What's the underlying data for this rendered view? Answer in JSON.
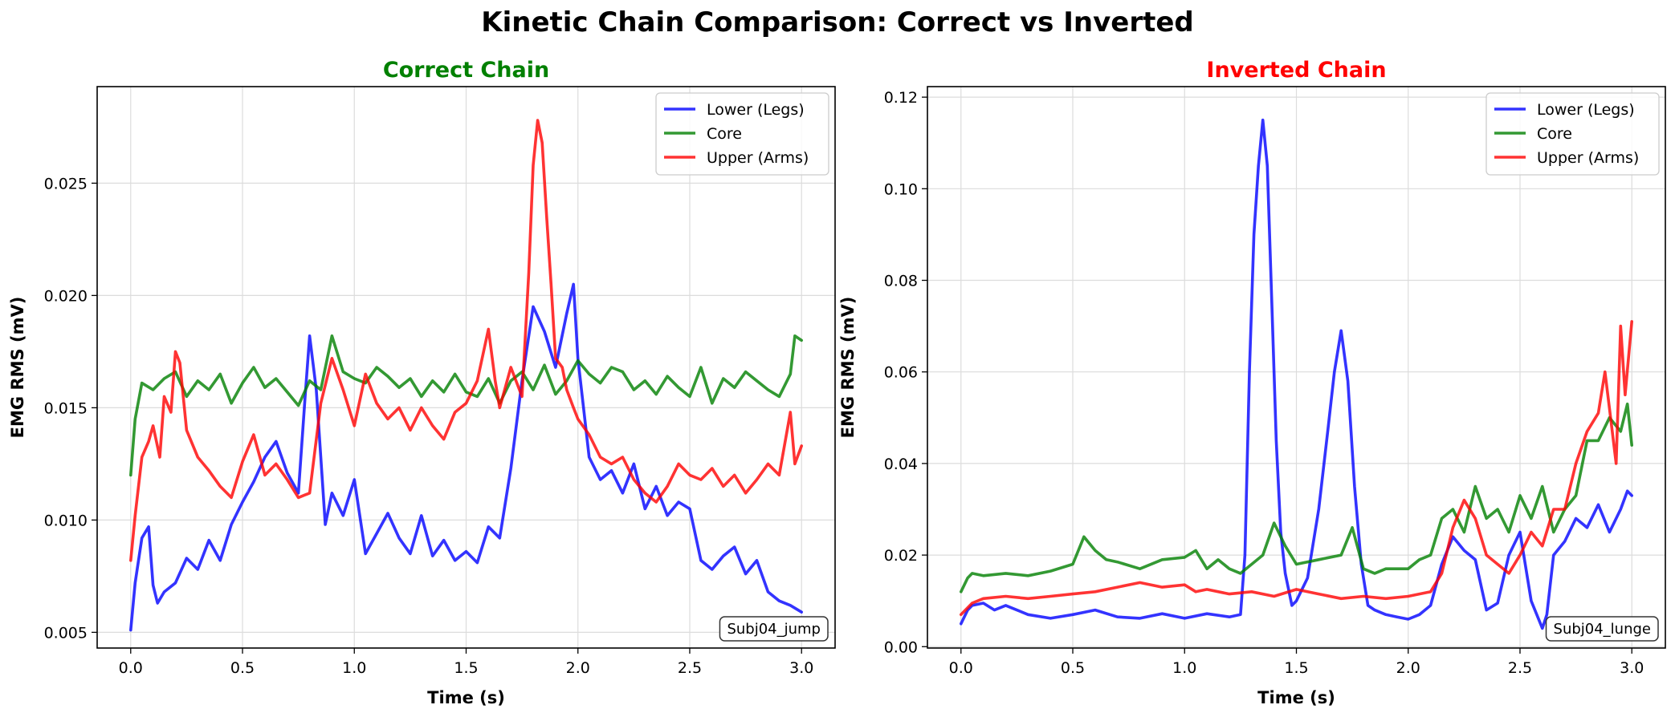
{
  "figure": {
    "title": "Kinetic Chain Comparison: Correct vs Inverted"
  },
  "chart_data": [
    {
      "type": "line",
      "title": "Correct Chain",
      "title_color": "#008000",
      "xlabel": "Time (s)",
      "ylabel": "EMG RMS (mV)",
      "xlim": [
        -0.15,
        3.15
      ],
      "ylim": [
        0.0043,
        0.0293
      ],
      "xticks": [
        0.0,
        0.5,
        1.0,
        1.5,
        2.0,
        2.5,
        3.0
      ],
      "xtick_labels": [
        "0.0",
        "0.5",
        "1.0",
        "1.5",
        "2.0",
        "2.5",
        "3.0"
      ],
      "yticks": [
        0.005,
        0.01,
        0.015,
        0.02,
        0.025
      ],
      "ytick_labels": [
        "0.005",
        "0.010",
        "0.015",
        "0.020",
        "0.025"
      ],
      "grid": true,
      "legend": "top-right",
      "annotation": "Subj04_jump",
      "series": [
        {
          "name": "Lower (Legs)",
          "color": "#0000ff",
          "x": [
            0.0,
            0.02,
            0.05,
            0.08,
            0.1,
            0.12,
            0.15,
            0.2,
            0.25,
            0.3,
            0.35,
            0.4,
            0.45,
            0.5,
            0.55,
            0.6,
            0.65,
            0.7,
            0.75,
            0.78,
            0.8,
            0.83,
            0.87,
            0.9,
            0.95,
            1.0,
            1.05,
            1.1,
            1.15,
            1.2,
            1.25,
            1.3,
            1.35,
            1.4,
            1.45,
            1.5,
            1.55,
            1.6,
            1.65,
            1.7,
            1.75,
            1.8,
            1.85,
            1.9,
            1.95,
            1.98,
            2.0,
            2.05,
            2.1,
            2.15,
            2.2,
            2.25,
            2.3,
            2.35,
            2.4,
            2.45,
            2.5,
            2.55,
            2.6,
            2.65,
            2.7,
            2.75,
            2.8,
            2.85,
            2.9,
            2.95,
            3.0
          ],
          "values": [
            0.0051,
            0.0072,
            0.0092,
            0.0097,
            0.0071,
            0.0063,
            0.0068,
            0.0072,
            0.0083,
            0.0078,
            0.0091,
            0.0082,
            0.0098,
            0.0108,
            0.0117,
            0.0128,
            0.0135,
            0.0121,
            0.0112,
            0.0155,
            0.0182,
            0.0158,
            0.0098,
            0.0112,
            0.0102,
            0.0118,
            0.0085,
            0.0094,
            0.0103,
            0.0092,
            0.0085,
            0.0102,
            0.0084,
            0.0091,
            0.0082,
            0.0086,
            0.0081,
            0.0097,
            0.0092,
            0.0123,
            0.0162,
            0.0195,
            0.0184,
            0.0168,
            0.0192,
            0.0205,
            0.0172,
            0.0128,
            0.0118,
            0.0122,
            0.0112,
            0.0125,
            0.0105,
            0.0115,
            0.0102,
            0.0108,
            0.0105,
            0.0082,
            0.0078,
            0.0084,
            0.0088,
            0.0076,
            0.0082,
            0.0068,
            0.0064,
            0.0062,
            0.0059
          ]
        },
        {
          "name": "Core",
          "color": "#008000",
          "x": [
            0.0,
            0.02,
            0.05,
            0.1,
            0.15,
            0.2,
            0.25,
            0.3,
            0.35,
            0.4,
            0.45,
            0.5,
            0.55,
            0.6,
            0.65,
            0.7,
            0.75,
            0.8,
            0.85,
            0.9,
            0.95,
            1.0,
            1.05,
            1.1,
            1.15,
            1.2,
            1.25,
            1.3,
            1.35,
            1.4,
            1.45,
            1.5,
            1.55,
            1.6,
            1.65,
            1.7,
            1.75,
            1.8,
            1.85,
            1.9,
            1.95,
            2.0,
            2.05,
            2.1,
            2.15,
            2.2,
            2.25,
            2.3,
            2.35,
            2.4,
            2.45,
            2.5,
            2.55,
            2.6,
            2.65,
            2.7,
            2.75,
            2.8,
            2.85,
            2.9,
            2.95,
            2.97,
            3.0
          ],
          "values": [
            0.012,
            0.0145,
            0.0161,
            0.0158,
            0.0163,
            0.0166,
            0.0155,
            0.0162,
            0.0158,
            0.0165,
            0.0152,
            0.0161,
            0.0168,
            0.0159,
            0.0163,
            0.0157,
            0.0151,
            0.0162,
            0.0158,
            0.0182,
            0.0166,
            0.0163,
            0.0161,
            0.0168,
            0.0164,
            0.0159,
            0.0163,
            0.0155,
            0.0162,
            0.0157,
            0.0165,
            0.0157,
            0.0155,
            0.0163,
            0.0152,
            0.0162,
            0.0166,
            0.0158,
            0.0169,
            0.0156,
            0.0162,
            0.0171,
            0.0165,
            0.0161,
            0.0168,
            0.0166,
            0.0158,
            0.0162,
            0.0156,
            0.0164,
            0.0159,
            0.0155,
            0.0168,
            0.0152,
            0.0163,
            0.0159,
            0.0166,
            0.0162,
            0.0158,
            0.0155,
            0.0165,
            0.0182,
            0.018
          ]
        },
        {
          "name": "Upper (Arms)",
          "color": "#ff0000",
          "x": [
            0.0,
            0.02,
            0.05,
            0.08,
            0.1,
            0.13,
            0.15,
            0.18,
            0.2,
            0.22,
            0.25,
            0.3,
            0.35,
            0.4,
            0.45,
            0.5,
            0.55,
            0.6,
            0.65,
            0.7,
            0.75,
            0.8,
            0.85,
            0.9,
            0.95,
            1.0,
            1.05,
            1.1,
            1.15,
            1.2,
            1.25,
            1.3,
            1.35,
            1.4,
            1.45,
            1.5,
            1.55,
            1.6,
            1.63,
            1.65,
            1.7,
            1.75,
            1.78,
            1.8,
            1.82,
            1.84,
            1.86,
            1.88,
            1.9,
            1.93,
            1.95,
            1.98,
            2.0,
            2.05,
            2.1,
            2.15,
            2.2,
            2.25,
            2.3,
            2.35,
            2.4,
            2.45,
            2.5,
            2.55,
            2.6,
            2.65,
            2.7,
            2.75,
            2.8,
            2.85,
            2.9,
            2.95,
            2.97,
            3.0
          ],
          "values": [
            0.0082,
            0.0102,
            0.0128,
            0.0135,
            0.0142,
            0.0128,
            0.0155,
            0.0148,
            0.0175,
            0.017,
            0.014,
            0.0128,
            0.0122,
            0.0115,
            0.011,
            0.0126,
            0.0138,
            0.012,
            0.0125,
            0.0118,
            0.011,
            0.0112,
            0.0152,
            0.0172,
            0.0158,
            0.0142,
            0.0165,
            0.0152,
            0.0145,
            0.015,
            0.014,
            0.015,
            0.0142,
            0.0136,
            0.0148,
            0.0152,
            0.0162,
            0.0185,
            0.0162,
            0.015,
            0.0168,
            0.0155,
            0.021,
            0.0258,
            0.0278,
            0.0268,
            0.0235,
            0.0205,
            0.0172,
            0.0168,
            0.0158,
            0.015,
            0.0145,
            0.0138,
            0.0128,
            0.0125,
            0.0128,
            0.0118,
            0.0112,
            0.0108,
            0.0115,
            0.0125,
            0.012,
            0.0118,
            0.0123,
            0.0115,
            0.012,
            0.0112,
            0.0118,
            0.0125,
            0.012,
            0.0148,
            0.0125,
            0.0133
          ]
        }
      ]
    },
    {
      "type": "line",
      "title": "Inverted Chain",
      "title_color": "#ff0000",
      "xlabel": "Time (s)",
      "ylabel": "EMG RMS (mV)",
      "xlim": [
        -0.15,
        3.15
      ],
      "ylim": [
        -0.0003,
        0.1223
      ],
      "xticks": [
        0.0,
        0.5,
        1.0,
        1.5,
        2.0,
        2.5,
        3.0
      ],
      "xtick_labels": [
        "0.0",
        "0.5",
        "1.0",
        "1.5",
        "2.0",
        "2.5",
        "3.0"
      ],
      "yticks": [
        0.0,
        0.02,
        0.04,
        0.06,
        0.08,
        0.1,
        0.12
      ],
      "ytick_labels": [
        "0.00",
        "0.02",
        "0.04",
        "0.06",
        "0.08",
        "0.10",
        "0.12"
      ],
      "grid": true,
      "legend": "top-right",
      "annotation": "Subj04_lunge",
      "series": [
        {
          "name": "Lower (Legs)",
          "color": "#0000ff",
          "x": [
            0.0,
            0.03,
            0.05,
            0.1,
            0.15,
            0.2,
            0.3,
            0.4,
            0.5,
            0.6,
            0.7,
            0.8,
            0.9,
            1.0,
            1.1,
            1.2,
            1.25,
            1.27,
            1.29,
            1.31,
            1.33,
            1.35,
            1.37,
            1.39,
            1.41,
            1.43,
            1.45,
            1.48,
            1.5,
            1.55,
            1.6,
            1.64,
            1.67,
            1.7,
            1.73,
            1.76,
            1.79,
            1.82,
            1.85,
            1.9,
            1.95,
            2.0,
            2.05,
            2.1,
            2.15,
            2.2,
            2.25,
            2.3,
            2.35,
            2.4,
            2.45,
            2.5,
            2.55,
            2.6,
            2.62,
            2.65,
            2.7,
            2.75,
            2.8,
            2.85,
            2.9,
            2.95,
            2.98,
            3.0
          ],
          "values": [
            0.005,
            0.008,
            0.009,
            0.0095,
            0.008,
            0.009,
            0.007,
            0.0062,
            0.007,
            0.008,
            0.0065,
            0.0062,
            0.0072,
            0.0062,
            0.0072,
            0.0065,
            0.007,
            0.02,
            0.06,
            0.09,
            0.105,
            0.115,
            0.105,
            0.075,
            0.045,
            0.025,
            0.016,
            0.009,
            0.01,
            0.015,
            0.03,
            0.047,
            0.06,
            0.069,
            0.058,
            0.035,
            0.018,
            0.009,
            0.008,
            0.007,
            0.0065,
            0.006,
            0.007,
            0.009,
            0.018,
            0.024,
            0.021,
            0.019,
            0.008,
            0.0095,
            0.02,
            0.025,
            0.01,
            0.004,
            0.007,
            0.02,
            0.023,
            0.028,
            0.026,
            0.031,
            0.025,
            0.03,
            0.034,
            0.033
          ]
        },
        {
          "name": "Core",
          "color": "#008000",
          "x": [
            0.0,
            0.03,
            0.05,
            0.1,
            0.2,
            0.3,
            0.4,
            0.5,
            0.55,
            0.6,
            0.65,
            0.7,
            0.8,
            0.9,
            1.0,
            1.05,
            1.1,
            1.15,
            1.2,
            1.25,
            1.3,
            1.35,
            1.4,
            1.45,
            1.5,
            1.6,
            1.7,
            1.75,
            1.8,
            1.85,
            1.9,
            2.0,
            2.05,
            2.1,
            2.15,
            2.2,
            2.25,
            2.3,
            2.35,
            2.4,
            2.45,
            2.5,
            2.55,
            2.6,
            2.65,
            2.7,
            2.75,
            2.8,
            2.85,
            2.9,
            2.95,
            2.98,
            3.0
          ],
          "values": [
            0.012,
            0.015,
            0.016,
            0.0155,
            0.016,
            0.0155,
            0.0165,
            0.018,
            0.024,
            0.021,
            0.019,
            0.0185,
            0.017,
            0.019,
            0.0195,
            0.021,
            0.017,
            0.019,
            0.017,
            0.016,
            0.018,
            0.02,
            0.027,
            0.022,
            0.018,
            0.019,
            0.02,
            0.026,
            0.017,
            0.016,
            0.017,
            0.017,
            0.019,
            0.02,
            0.028,
            0.03,
            0.025,
            0.035,
            0.028,
            0.03,
            0.025,
            0.033,
            0.028,
            0.035,
            0.025,
            0.03,
            0.033,
            0.045,
            0.045,
            0.05,
            0.047,
            0.053,
            0.044
          ]
        },
        {
          "name": "Upper (Arms)",
          "color": "#ff0000",
          "x": [
            0.0,
            0.05,
            0.1,
            0.2,
            0.3,
            0.4,
            0.5,
            0.6,
            0.7,
            0.8,
            0.9,
            1.0,
            1.05,
            1.1,
            1.2,
            1.3,
            1.4,
            1.5,
            1.6,
            1.7,
            1.8,
            1.9,
            2.0,
            2.1,
            2.15,
            2.2,
            2.25,
            2.3,
            2.35,
            2.4,
            2.45,
            2.5,
            2.55,
            2.6,
            2.65,
            2.7,
            2.75,
            2.8,
            2.85,
            2.88,
            2.9,
            2.93,
            2.95,
            2.97,
            3.0
          ],
          "values": [
            0.007,
            0.0095,
            0.0105,
            0.011,
            0.0105,
            0.011,
            0.0115,
            0.012,
            0.013,
            0.014,
            0.013,
            0.0135,
            0.012,
            0.0125,
            0.0115,
            0.012,
            0.011,
            0.0125,
            0.0115,
            0.0105,
            0.011,
            0.0105,
            0.011,
            0.012,
            0.016,
            0.026,
            0.032,
            0.028,
            0.02,
            0.018,
            0.016,
            0.02,
            0.025,
            0.022,
            0.03,
            0.03,
            0.04,
            0.047,
            0.051,
            0.06,
            0.052,
            0.04,
            0.07,
            0.055,
            0.071
          ]
        }
      ]
    }
  ]
}
